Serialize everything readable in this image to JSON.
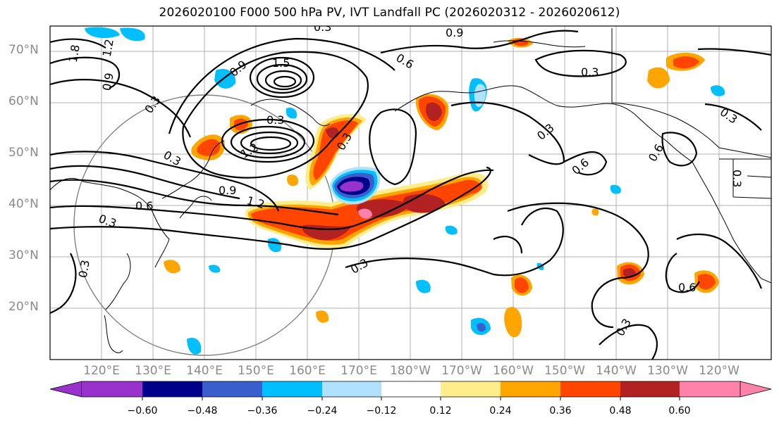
{
  "title": "2026020100 F000 500 hPa PV, IVT Landfall PC (2026020312 - 2026020612)",
  "latitude_labels": [
    "70°N",
    "60°N",
    "50°N",
    "40°N",
    "30°N",
    "20°N"
  ],
  "longitude_labels": [
    "120°E",
    "130°E",
    "140°E",
    "150°E",
    "160°E",
    "170°E",
    "180°W",
    "170°W",
    "160°W",
    "150°W",
    "140°W",
    "130°W",
    "120°W"
  ],
  "contour_labels": [
    "0.3",
    "0.9",
    "1.5",
    "1.8",
    "1.2",
    "0.9",
    "0.3",
    "0.6",
    "0.3",
    "0.3",
    "0.6",
    "0.3",
    "0.6",
    "0.3",
    "0.3",
    "0.6",
    "0.9",
    "1.2",
    "0.3",
    "0.3",
    "0.6",
    "0.3",
    "0.3",
    "0.3",
    "1.2",
    "0.9",
    "0.3"
  ],
  "colorbar": {
    "tick_labels": [
      "−0.60",
      "−0.48",
      "−0.36",
      "−0.24",
      "−0.12",
      "0.12",
      "0.24",
      "0.36",
      "0.48",
      "0.60"
    ],
    "colors": [
      "#9932cc",
      "#00008b",
      "#3a5fcd",
      "#00bfff",
      "#b0e2ff",
      "#ffffff",
      "#ffec8b",
      "#ffa500",
      "#ff4500",
      "#b22222",
      "#ff82ab"
    ]
  }
}
